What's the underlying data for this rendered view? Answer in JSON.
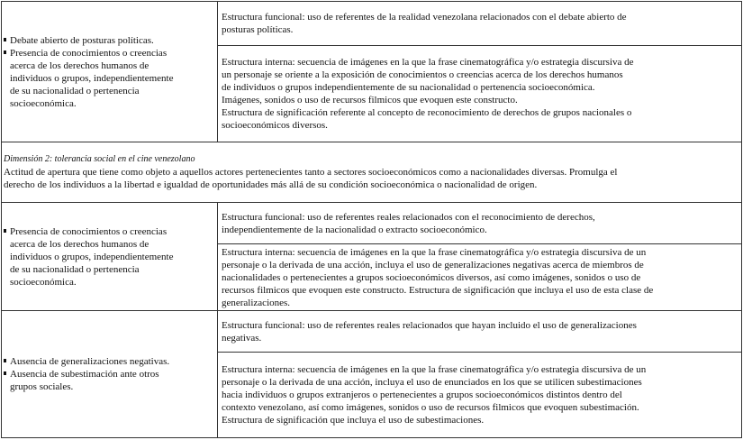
{
  "rows": [
    {
      "indicators": [
        [
          "Debate abierto de posturas políticas."
        ],
        [
          "Presencia de conocimientos o creencias",
          "acerca de los derechos humanos de",
          "individuos o grupos, independientemente",
          "de su nacionalidad o pertenencia",
          "socioeconómica."
        ]
      ],
      "functional": [
        "Estructura funcional: uso de referentes de la realidad venezolana relacionados con el debate abierto de",
        "posturas políticas."
      ],
      "internal": [
        "Estructura interna: secuencia de imágenes en la que la frase cinematográfica y/o estrategia discursiva de",
        "un personaje se oriente a la exposición de conocimientos o creencias acerca de los derechos humanos",
        "de individuos o grupos independientemente de su nacionalidad o pertenencia socioeconómica.",
        "Imágenes, sonidos o uso de recursos filmicos que evoquen este constructo.",
        "Estructura de significación referente al concepto de reconocimiento de derechos de grupos nacionales o",
        "socioeconómicos diversos."
      ]
    },
    {
      "indicators": [
        [
          "Presencia de conocimientos o creencias",
          "acerca de los derechos humanos de",
          "individuos o grupos, independientemente",
          "de su nacionalidad o pertenencia",
          "socioeconómica."
        ]
      ],
      "functional": [
        "Estructura funcional: uso de referentes reales relacionados con el reconocimiento de derechos,",
        "independientemente de la nacionalidad o extracto socioeconómico."
      ],
      "internal": [
        "Estructura interna: secuencia de imágenes en la que la frase cinematográfica y/o estrategia discursiva de un",
        "personaje o la derivada de una acción, incluya el uso de generalizaciones negativas acerca de miembros de",
        "nacionalidades o pertenecientes a grupos socioeconómicos diversos, así como imágenes, sonidos o uso de",
        "recursos filmicos que evoquen este constructo. Estructura de significación que incluya el uso de esta clase de",
        "generalizaciones."
      ]
    },
    {
      "indicators": [
        [
          "Ausencia de generalizaciones negativas."
        ],
        [
          "Ausencia de subestimación ante otros",
          "grupos sociales."
        ]
      ],
      "functional": [
        "Estructura funcional: uso de referentes reales relacionados que hayan incluido el uso de generalizaciones",
        "negativas."
      ],
      "internal": [
        "Estructura interna: secuencia de imágenes en la que la frase cinematográfica y/o estrategia discursiva de un",
        "personaje o la derivada de una acción, incluya el uso de enunciados en los que se utilicen subestimaciones",
        "hacia individuos o grupos extranjeros o pertenecientes a grupos socioeconómicos distintos dentro del",
        "contexto venezolano, así como imágenes, sonidos o uso de recursos filmicos que evoquen subestimación.",
        "Estructura de significación que incluya el uso de subestimaciones."
      ]
    }
  ],
  "dimension": {
    "title": "Dimensión 2: tolerancia social en el cine venezolano",
    "description": [
      "Actitud de apertura que tiene como objeto a aquellos actores pertenecientes tanto a sectores socioeconómicos como a nacionalidades diversas. Promulga el",
      "derecho de los individuos a la libertad e igualdad de oportunidades más allá de su condición socioeconómica o nacionalidad de origen."
    ]
  }
}
